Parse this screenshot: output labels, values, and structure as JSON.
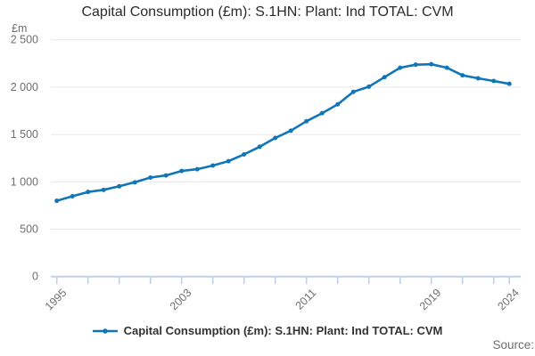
{
  "header": {
    "title": "Capital Consumption (£m): S.1HN: Plant: Ind TOTAL: CVM",
    "unit_label": "£m"
  },
  "legend": {
    "label": "Capital Consumption (£m): S.1HN: Plant: Ind TOTAL: CVM",
    "marker": "line-with-dot-icon"
  },
  "footer": {
    "source_label": "Source:"
  },
  "colors": {
    "line": "#1076b7",
    "grid": "#e6e6e6",
    "axis": "#c3cfe6",
    "muted_text": "#6f6f6f",
    "title_text": "#2b2b2b",
    "legend_text": "#333333"
  },
  "chart_data": {
    "type": "line",
    "title": "Capital Consumption (£m): S.1HN: Plant: Ind TOTAL: CVM",
    "unit_label": "£m",
    "x": [
      1995,
      1996,
      1997,
      1998,
      1999,
      2000,
      2001,
      2002,
      2003,
      2004,
      2005,
      2006,
      2007,
      2008,
      2009,
      2010,
      2011,
      2012,
      2013,
      2014,
      2015,
      2016,
      2017,
      2018,
      2019,
      2020,
      2021,
      2022,
      2023,
      2024
    ],
    "series": [
      {
        "name": "Capital Consumption (£m): S.1HN: Plant: Ind TOTAL: CVM",
        "color": "#1076b7",
        "values": [
          800,
          848,
          893,
          915,
          953,
          995,
          1045,
          1068,
          1115,
          1133,
          1172,
          1218,
          1290,
          1370,
          1463,
          1540,
          1640,
          1725,
          1818,
          1950,
          2005,
          2105,
          2205,
          2237,
          2242,
          2205,
          2125,
          2093,
          2065,
          2035
        ]
      }
    ],
    "ylim": [
      0,
      2500
    ],
    "y_ticks": [
      0,
      500,
      1000,
      1500,
      2000,
      2500
    ],
    "y_tick_labels": [
      "0",
      "500",
      "1 000",
      "1 500",
      "2 000",
      "2 500"
    ],
    "x_labeled_ticks": [
      {
        "year": 1995,
        "label": "1995"
      },
      {
        "year": 2003,
        "label": "2003"
      },
      {
        "year": 2011,
        "label": "2011"
      },
      {
        "year": 2019,
        "label": "2019"
      },
      {
        "year": 2024,
        "label": "2024"
      }
    ],
    "x_minor_tick_step": 2,
    "grid": true,
    "legend_position": "bottom",
    "source_label": "Source:"
  }
}
